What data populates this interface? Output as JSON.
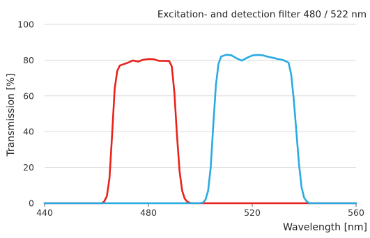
{
  "chart_data": {
    "type": "line",
    "title": "Excitation- and detection filter 480 / 522 nm",
    "xlabel": "Wavelength [nm]",
    "ylabel": "Transmission [%]",
    "xlim": [
      440,
      560
    ],
    "ylim": [
      0,
      100
    ],
    "x_ticks": [
      "440",
      "480",
      "520",
      "560"
    ],
    "y_ticks": [
      "0",
      "20",
      "40",
      "60",
      "80",
      "100"
    ],
    "grid": "horizontal",
    "legend": "none",
    "series": [
      {
        "color": "#e8221c",
        "x": [
          440,
          462,
          463,
          464,
          465,
          466,
          467,
          468,
          469,
          470,
          472,
          474,
          476,
          478,
          480,
          482,
          484,
          486,
          488,
          489,
          490,
          491,
          492,
          493,
          494,
          495,
          496,
          497,
          498,
          500,
          560
        ],
        "y": [
          0,
          0,
          1,
          4,
          14,
          38,
          64,
          74,
          77,
          77.5,
          78.5,
          79.8,
          79.2,
          80.2,
          80.6,
          80.5,
          79.6,
          79.6,
          79.5,
          76.5,
          62,
          38,
          18,
          7,
          2.5,
          0.8,
          0.2,
          0,
          0,
          0,
          0
        ]
      },
      {
        "color": "#29abe2",
        "x": [
          440,
          499,
          501,
          502,
          503,
          504,
          505,
          506,
          507,
          508,
          510,
          512,
          514,
          516,
          518,
          520,
          522,
          524,
          526,
          528,
          530,
          532,
          534,
          535,
          536,
          537,
          538,
          539,
          540,
          541,
          542,
          560
        ],
        "y": [
          0,
          0,
          0.3,
          2,
          7,
          20,
          44,
          66,
          78,
          82,
          83,
          82.7,
          81,
          79.7,
          81.3,
          82.6,
          82.9,
          82.7,
          81.9,
          81.3,
          80.6,
          80,
          78.6,
          72,
          58,
          40,
          22,
          9,
          3,
          1,
          0,
          0
        ]
      }
    ]
  }
}
